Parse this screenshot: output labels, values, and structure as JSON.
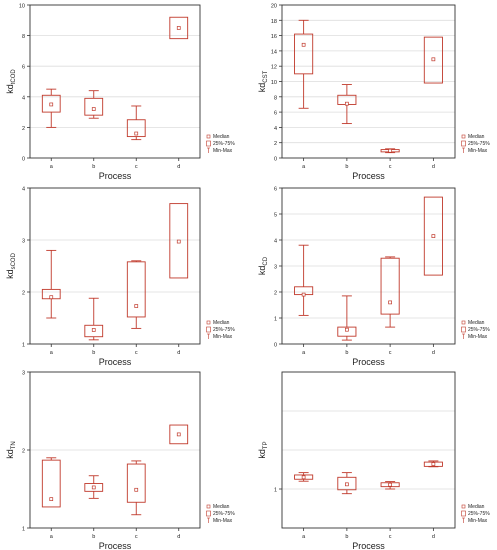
{
  "colors": {
    "box": "#c0392b",
    "grid": "#dddddd",
    "axis": "#333333",
    "text": "#222222"
  },
  "chart_data": [
    {
      "type": "box",
      "ylabel_main": "kd",
      "ylabel_sub": "tCOD",
      "xlabel": "Process",
      "categories": [
        "a",
        "b",
        "c",
        "d"
      ],
      "ylim": [
        0,
        10
      ],
      "yticks": [
        "0",
        "2",
        "4",
        "6",
        "8",
        "10"
      ],
      "yticks_values": [
        0,
        2,
        4,
        6,
        8,
        10
      ],
      "boxes": [
        {
          "min": 2.0,
          "q1": 3.0,
          "median": 3.5,
          "q3": 4.1,
          "max": 4.5
        },
        {
          "min": 2.6,
          "q1": 2.8,
          "median": 3.2,
          "q3": 3.9,
          "max": 4.4
        },
        {
          "min": 1.2,
          "q1": 1.4,
          "median": 1.6,
          "q3": 2.5,
          "max": 3.4
        },
        {
          "min": 7.8,
          "q1": 7.8,
          "median": 8.5,
          "q3": 9.2,
          "max": 9.2
        }
      ],
      "legend": [
        "Median",
        "25%-75%",
        "Min-Max"
      ]
    },
    {
      "type": "box",
      "ylabel_main": "kd",
      "ylabel_sub": "CST",
      "xlabel": "Process",
      "categories": [
        "a",
        "b",
        "c",
        "d"
      ],
      "ylim": [
        0,
        20
      ],
      "yticks": [
        "0",
        "2",
        "4",
        "6",
        "8",
        "10",
        "12",
        "14",
        "16",
        "18",
        "20"
      ],
      "yticks_values": [
        0,
        2,
        4,
        6,
        8,
        10,
        12,
        14,
        16,
        18,
        20
      ],
      "boxes": [
        {
          "min": 6.5,
          "q1": 11.0,
          "median": 14.8,
          "q3": 16.2,
          "max": 18.0
        },
        {
          "min": 4.5,
          "q1": 7.0,
          "median": 7.1,
          "q3": 8.2,
          "max": 9.6
        },
        {
          "min": 0.7,
          "q1": 0.8,
          "median": 0.95,
          "q3": 1.1,
          "max": 1.2
        },
        {
          "min": 9.8,
          "q1": 9.8,
          "median": 12.9,
          "q3": 15.8,
          "max": 15.8
        }
      ],
      "legend": [
        "Median",
        "25%-75%",
        "Min-Max"
      ]
    },
    {
      "type": "box",
      "ylabel_main": "kd",
      "ylabel_sub": "sCOD",
      "xlabel": "Process",
      "categories": [
        "a",
        "b",
        "c",
        "d"
      ],
      "ylim": [
        1,
        4
      ],
      "yticks": [
        "1",
        "2",
        "3",
        "4"
      ],
      "yticks_values": [
        1,
        2,
        3,
        4
      ],
      "boxes": [
        {
          "min": 1.5,
          "q1": 1.87,
          "median": 1.9,
          "q3": 2.05,
          "max": 2.8
        },
        {
          "min": 1.08,
          "q1": 1.14,
          "median": 1.27,
          "q3": 1.36,
          "max": 1.88
        },
        {
          "min": 1.3,
          "q1": 1.52,
          "median": 1.73,
          "q3": 2.58,
          "max": 2.6
        },
        {
          "min": 2.27,
          "q1": 2.27,
          "median": 2.97,
          "q3": 3.7,
          "max": 3.7
        }
      ],
      "legend": [
        "Median",
        "25%-75%",
        "Min-Max"
      ]
    },
    {
      "type": "box",
      "ylabel_main": "kd",
      "ylabel_sub": "CD",
      "xlabel": "Process",
      "categories": [
        "a",
        "b",
        "c",
        "d"
      ],
      "ylim": [
        0,
        6
      ],
      "yticks": [
        "0",
        "1",
        "2",
        "3",
        "4",
        "5",
        "6"
      ],
      "yticks_values": [
        0,
        1,
        2,
        3,
        4,
        5,
        6
      ],
      "boxes": [
        {
          "min": 1.1,
          "q1": 1.9,
          "median": 1.9,
          "q3": 2.2,
          "max": 3.8
        },
        {
          "min": 0.15,
          "q1": 0.3,
          "median": 0.55,
          "q3": 0.65,
          "max": 1.85
        },
        {
          "min": 0.65,
          "q1": 1.15,
          "median": 1.6,
          "q3": 3.3,
          "max": 3.35
        },
        {
          "min": 2.65,
          "q1": 2.65,
          "median": 4.15,
          "q3": 5.65,
          "max": 5.65
        }
      ],
      "legend": [
        "Median",
        "25%-75%",
        "Min-Max"
      ]
    },
    {
      "type": "box",
      "ylabel_main": "kd",
      "ylabel_sub": "TN",
      "xlabel": "Process",
      "categories": [
        "a",
        "b",
        "c",
        "d"
      ],
      "ylim": [
        1,
        3
      ],
      "yticks": [
        "1",
        "2",
        "3"
      ],
      "yticks_values": [
        1,
        2,
        3
      ],
      "boxes": [
        {
          "min": 1.27,
          "q1": 1.27,
          "median": 1.37,
          "q3": 1.87,
          "max": 1.9
        },
        {
          "min": 1.38,
          "q1": 1.47,
          "median": 1.52,
          "q3": 1.57,
          "max": 1.67
        },
        {
          "min": 1.17,
          "q1": 1.33,
          "median": 1.49,
          "q3": 1.82,
          "max": 1.86
        },
        {
          "min": 2.08,
          "q1": 2.08,
          "median": 2.2,
          "q3": 2.32,
          "max": 2.32
        }
      ],
      "legend": [
        "Median",
        "25%-75%",
        "Min-Max"
      ]
    },
    {
      "type": "box",
      "ylabel_main": "kd",
      "ylabel_sub": "TP",
      "xlabel": "Process",
      "categories": [
        "a",
        "b",
        "c",
        "d"
      ],
      "ylim": [
        0,
        4
      ],
      "yticks": [
        "1"
      ],
      "yticks_values": [
        1
      ],
      "gridlines": [
        1,
        2,
        3,
        4
      ],
      "boxes": [
        {
          "min": 1.2,
          "q1": 1.25,
          "median": 1.3,
          "q3": 1.36,
          "max": 1.42
        },
        {
          "min": 0.88,
          "q1": 0.98,
          "median": 1.12,
          "q3": 1.3,
          "max": 1.42
        },
        {
          "min": 1.0,
          "q1": 1.06,
          "median": 1.11,
          "q3": 1.16,
          "max": 1.19
        },
        {
          "min": 1.57,
          "q1": 1.58,
          "median": 1.64,
          "q3": 1.69,
          "max": 1.72
        }
      ],
      "legend": [
        "Median",
        "25%-75%",
        "Min-Max"
      ]
    }
  ]
}
